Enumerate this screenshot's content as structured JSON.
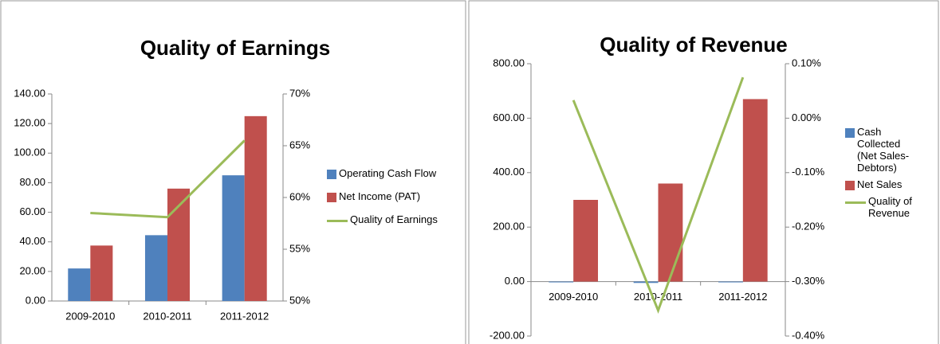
{
  "chart_data": [
    {
      "type": "bar",
      "title": "Quality of Earnings",
      "categories": [
        "2009-2010",
        "2010-2011",
        "2011-2012"
      ],
      "series": [
        {
          "name": "Operating Cash Flow",
          "color": "#4f81bd",
          "values": [
            22,
            44.5,
            85
          ]
        },
        {
          "name": "Net Income (PAT)",
          "color": "#c0504d",
          "values": [
            37.5,
            76,
            125
          ]
        },
        {
          "name": "Quality of Earnings",
          "color": "#9bbb59",
          "type": "line",
          "axis": "y2",
          "values": [
            58.5,
            58.1,
            65.5
          ]
        }
      ],
      "ylim": [
        0,
        140
      ],
      "yticks": [
        {
          "value": 0,
          "label": "0.00"
        },
        {
          "value": 20,
          "label": "20.00"
        },
        {
          "value": 40,
          "label": "40.00"
        },
        {
          "value": 60,
          "label": "60.00"
        },
        {
          "value": 80,
          "label": "80.00"
        },
        {
          "value": 100,
          "label": "100.00"
        },
        {
          "value": 120,
          "label": "120.00"
        },
        {
          "value": 140,
          "label": "140.00"
        }
      ],
      "y2lim": [
        50,
        70
      ],
      "y2ticks": [
        {
          "value": 50,
          "label": "50%"
        },
        {
          "value": 55,
          "label": "55%"
        },
        {
          "value": 60,
          "label": "60%"
        },
        {
          "value": 65,
          "label": "65%"
        },
        {
          "value": 70,
          "label": "70%"
        }
      ],
      "legend": "right"
    },
    {
      "type": "bar",
      "title": "Quality of Revenue",
      "categories": [
        "2009-2010",
        "2010-2011",
        "2011-2012"
      ],
      "series": [
        {
          "name": "Cash Collected (Net Sales-Debtors)",
          "color": "#4f81bd",
          "values": [
            0,
            -5,
            0
          ]
        },
        {
          "name": "Net Sales",
          "color": "#c0504d",
          "values": [
            300,
            360,
            670
          ]
        },
        {
          "name": "Quality of Revenue",
          "color": "#9bbb59",
          "type": "line",
          "axis": "y2",
          "values": [
            0.033,
            -0.353,
            0.075
          ]
        }
      ],
      "ylim": [
        -200,
        800
      ],
      "yticks": [
        {
          "value": -200,
          "label": "-200.00"
        },
        {
          "value": 0,
          "label": "0.00"
        },
        {
          "value": 200,
          "label": "200.00"
        },
        {
          "value": 400,
          "label": "400.00"
        },
        {
          "value": 600,
          "label": "600.00"
        },
        {
          "value": 800,
          "label": "800.00"
        }
      ],
      "y2lim": [
        -0.4,
        0.1
      ],
      "y2ticks": [
        {
          "value": -0.4,
          "label": "-0.40%"
        },
        {
          "value": -0.3,
          "label": "-0.30%"
        },
        {
          "value": -0.2,
          "label": "-0.20%"
        },
        {
          "value": -0.1,
          "label": "-0.10%"
        },
        {
          "value": 0,
          "label": "0.00%"
        },
        {
          "value": 0.1,
          "label": "0.10%"
        }
      ],
      "legend": "right"
    }
  ]
}
